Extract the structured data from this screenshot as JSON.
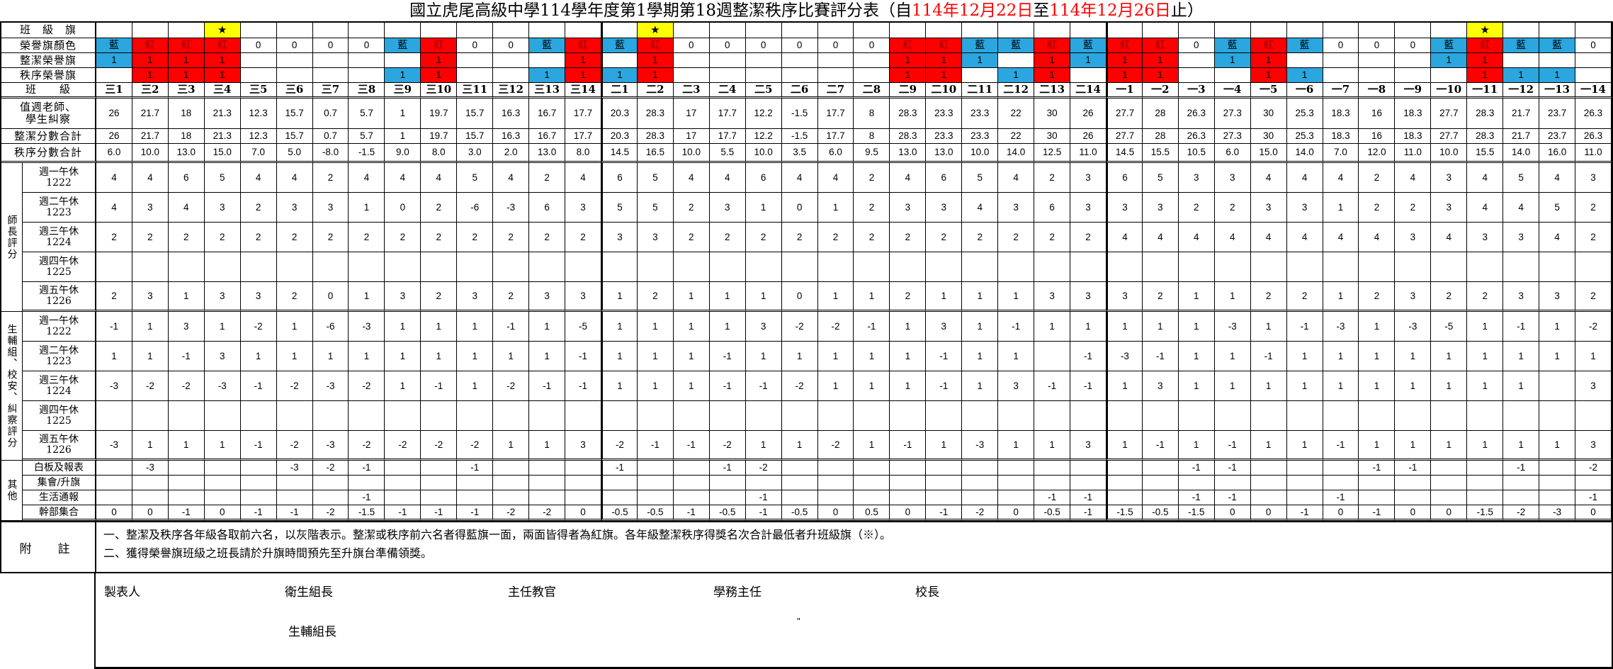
{
  "title": {
    "part1": "國立虎尾高級中學114學年度第1學期第18週整潔秩序比賽評分表（自",
    "date1": "114年12月22日",
    "part2": "至",
    "date2": "114年12月26日",
    "part3": "止）"
  },
  "colors": {
    "blue": "#2BA6DE",
    "red": "#FF0000",
    "yellow": "#FFFF00"
  },
  "legend": {
    "blue_char": "藍",
    "red_char": "紅",
    "star_char": "★"
  },
  "row_labels": {
    "class_flag": "班　級　旗",
    "flag_color": "榮譽旗顏色",
    "clean_flag": "整潔榮譽旗",
    "order_flag": "秩序榮譽旗",
    "classes": "班　　級",
    "teacher_line1": "值週老師、",
    "teacher_line2": "學生糾察",
    "clean_total": "整潔分數合計",
    "order_total": "秩序分數合計"
  },
  "classes": [
    "三1",
    "三2",
    "三3",
    "三4",
    "三5",
    "三6",
    "三7",
    "三8",
    "三9",
    "三10",
    "三11",
    "三12",
    "三13",
    "三14",
    "二1",
    "二2",
    "二3",
    "二4",
    "二5",
    "二6",
    "二7",
    "二8",
    "二9",
    "二10",
    "二11",
    "二12",
    "二13",
    "二14",
    "一1",
    "一2",
    "一3",
    "一4",
    "一5",
    "一6",
    "一7",
    "一8",
    "一9",
    "一10",
    "一11",
    "一12",
    "一13",
    "一14"
  ],
  "class_flag_stars": [
    3,
    15,
    38
  ],
  "flag_color": [
    "B",
    "R",
    "R",
    "R",
    "0",
    "0",
    "0",
    "0",
    "B",
    "R",
    "0",
    "0",
    "B",
    "R",
    "B",
    "R",
    "0",
    "0",
    "0",
    "0",
    "0",
    "0",
    "R",
    "R",
    "B",
    "B",
    "R",
    "B",
    "R",
    "R",
    "0",
    "B",
    "R",
    "B",
    "0",
    "0",
    "0",
    "B",
    "R",
    "B",
    "B",
    "0"
  ],
  "clean_flag": [
    "1b",
    "1r",
    "1r",
    "1r",
    "",
    "",
    "",
    "",
    "",
    "1r",
    "",
    "",
    "",
    "1r",
    "",
    "1r",
    "",
    "",
    "",
    "",
    "",
    "",
    "1r",
    "1r",
    "1b",
    "",
    "1r",
    "1b",
    "1r",
    "1r",
    "",
    "1b",
    "1r",
    "",
    "",
    "",
    "",
    "1b",
    "1r",
    "",
    "",
    ""
  ],
  "order_flag": [
    "",
    "1r",
    "1r",
    "1r",
    "",
    "",
    "",
    "",
    "1b",
    "1r",
    "",
    "",
    "1b",
    "1r",
    "1b",
    "1r",
    "",
    "",
    "",
    "",
    "",
    "",
    "1r",
    "1r",
    "",
    "1b",
    "1r",
    "",
    "1r",
    "1r",
    "",
    "",
    "1r",
    "1b",
    "",
    "",
    "",
    "",
    "1r",
    "1b",
    "1b",
    ""
  ],
  "teacher_scores": [
    "26",
    "21.7",
    "18",
    "21.3",
    "12.3",
    "15.7",
    "0.7",
    "5.7",
    "1",
    "19.7",
    "15.7",
    "16.3",
    "16.7",
    "17.7",
    "20.3",
    "28.3",
    "17",
    "17.7",
    "12.2",
    "-1.5",
    "17.7",
    "8",
    "28.3",
    "23.3",
    "23.3",
    "22",
    "30",
    "26",
    "27.7",
    "28",
    "26.3",
    "27.3",
    "30",
    "25.3",
    "18.3",
    "16",
    "18.3",
    "27.7",
    "28.3",
    "21.7",
    "23.7",
    "26.3"
  ],
  "clean_total": [
    "26",
    "21.7",
    "18",
    "21.3",
    "12.3",
    "15.7",
    "0.7",
    "5.7",
    "1",
    "19.7",
    "15.7",
    "16.3",
    "16.7",
    "17.7",
    "20.3",
    "28.3",
    "17",
    "17.7",
    "12.2",
    "-1.5",
    "17.7",
    "8",
    "28.3",
    "23.3",
    "23.3",
    "22",
    "30",
    "26",
    "27.7",
    "28",
    "26.3",
    "27.3",
    "30",
    "25.3",
    "18.3",
    "16",
    "18.3",
    "27.7",
    "28.3",
    "21.7",
    "23.7",
    "26.3"
  ],
  "order_total": [
    "6.0",
    "10.0",
    "13.0",
    "15.0",
    "7.0",
    "5.0",
    "-8.0",
    "-1.5",
    "9.0",
    "8.0",
    "3.0",
    "2.0",
    "13.0",
    "8.0",
    "14.5",
    "16.5",
    "10.0",
    "5.5",
    "10.0",
    "3.5",
    "6.0",
    "9.5",
    "13.0",
    "13.0",
    "10.0",
    "14.0",
    "12.5",
    "11.0",
    "14.5",
    "15.5",
    "10.5",
    "6.0",
    "15.0",
    "14.0",
    "7.0",
    "12.0",
    "11.0",
    "10.0",
    "15.5",
    "14.0",
    "16.0",
    "11.0"
  ],
  "teacher_eval": {
    "label": "師長評分",
    "rows": [
      {
        "label": "週一午休",
        "code": "1222",
        "values": [
          "4",
          "4",
          "6",
          "5",
          "4",
          "4",
          "2",
          "4",
          "4",
          "4",
          "5",
          "4",
          "2",
          "4",
          "6",
          "5",
          "4",
          "4",
          "6",
          "4",
          "4",
          "2",
          "4",
          "6",
          "5",
          "4",
          "2",
          "3",
          "6",
          "5",
          "3",
          "3",
          "4",
          "4",
          "4",
          "2",
          "4",
          "3",
          "4",
          "5",
          "4",
          "3"
        ]
      },
      {
        "label": "週二午休",
        "code": "1223",
        "values": [
          "4",
          "3",
          "4",
          "3",
          "2",
          "3",
          "3",
          "1",
          "0",
          "2",
          "-6",
          "-3",
          "6",
          "3",
          "5",
          "5",
          "2",
          "3",
          "1",
          "0",
          "1",
          "2",
          "3",
          "3",
          "4",
          "3",
          "6",
          "3",
          "3",
          "3",
          "2",
          "2",
          "3",
          "3",
          "1",
          "2",
          "2",
          "3",
          "4",
          "4",
          "5",
          "2"
        ]
      },
      {
        "label": "週三午休",
        "code": "1224",
        "values": [
          "2",
          "2",
          "2",
          "2",
          "2",
          "2",
          "2",
          "2",
          "2",
          "2",
          "2",
          "2",
          "2",
          "2",
          "3",
          "3",
          "2",
          "2",
          "2",
          "2",
          "2",
          "2",
          "2",
          "2",
          "2",
          "2",
          "2",
          "2",
          "4",
          "4",
          "4",
          "4",
          "4",
          "4",
          "4",
          "4",
          "3",
          "4",
          "3",
          "3",
          "4",
          "2"
        ]
      },
      {
        "label": "週四午休",
        "code": "1225",
        "values": [
          "",
          "",
          "",
          "",
          "",
          "",
          "",
          "",
          "",
          "",
          "",
          "",
          "",
          "",
          "",
          "",
          "",
          "",
          "",
          "",
          "",
          "",
          "",
          "",
          "",
          "",
          "",
          "",
          "",
          "",
          "",
          "",
          "",
          "",
          "",
          "",
          "",
          "",
          "",
          "",
          "",
          ""
        ]
      },
      {
        "label": "週五午休",
        "code": "1226",
        "values": [
          "2",
          "3",
          "1",
          "3",
          "3",
          "2",
          "0",
          "1",
          "3",
          "2",
          "3",
          "2",
          "3",
          "3",
          "1",
          "2",
          "1",
          "1",
          "1",
          "0",
          "1",
          "1",
          "2",
          "1",
          "1",
          "1",
          "3",
          "3",
          "3",
          "2",
          "1",
          "1",
          "2",
          "2",
          "1",
          "2",
          "3",
          "2",
          "2",
          "3",
          "3",
          "2"
        ]
      }
    ]
  },
  "discipline_eval": {
    "label": "生輔組、校安、糾察評分",
    "rows": [
      {
        "label": "週一午休",
        "code": "1222",
        "values": [
          "-1",
          "1",
          "3",
          "1",
          "-2",
          "1",
          "-6",
          "-3",
          "1",
          "1",
          "1",
          "-1",
          "1",
          "-5",
          "1",
          "1",
          "1",
          "1",
          "3",
          "-2",
          "-2",
          "-1",
          "1",
          "3",
          "1",
          "-1",
          "1",
          "1",
          "1",
          "1",
          "1",
          "-3",
          "1",
          "-1",
          "-3",
          "1",
          "-3",
          "-5",
          "1",
          "-1",
          "1",
          "-2"
        ]
      },
      {
        "label": "週二午休",
        "code": "1223",
        "values": [
          "1",
          "1",
          "-1",
          "3",
          "1",
          "1",
          "1",
          "1",
          "1",
          "1",
          "1",
          "1",
          "1",
          "-1",
          "1",
          "1",
          "1",
          "-1",
          "1",
          "1",
          "1",
          "1",
          "1",
          "-1",
          "1",
          "1",
          "",
          "-1",
          "-3",
          "-1",
          "1",
          "1",
          "-1",
          "1",
          "1",
          "1",
          "1",
          "1",
          "1",
          "1",
          "1",
          "1"
        ]
      },
      {
        "label": "週三午休",
        "code": "1224",
        "values": [
          "-3",
          "-2",
          "-2",
          "-3",
          "-1",
          "-2",
          "-3",
          "-2",
          "1",
          "-1",
          "1",
          "-2",
          "-1",
          "-1",
          "1",
          "1",
          "1",
          "-1",
          "-1",
          "-2",
          "1",
          "1",
          "1",
          "-1",
          "1",
          "3",
          "-1",
          "-1",
          "1",
          "3",
          "1",
          "1",
          "1",
          "1",
          "1",
          "1",
          "1",
          "1",
          "1",
          "1",
          "",
          "3"
        ]
      },
      {
        "label": "週四午休",
        "code": "1225",
        "values": [
          "",
          "",
          "",
          "",
          "",
          "",
          "",
          "",
          "",
          "",
          "",
          "",
          "",
          "",
          "",
          "",
          "",
          "",
          "",
          "",
          "",
          "",
          "",
          "",
          "",
          "",
          "",
          "",
          "",
          "",
          "",
          "",
          "",
          "",
          "",
          "",
          "",
          "",
          "",
          "",
          "",
          ""
        ]
      },
      {
        "label": "週五午休",
        "code": "1226",
        "values": [
          "-3",
          "1",
          "1",
          "1",
          "-1",
          "-2",
          "-3",
          "-2",
          "-2",
          "-2",
          "-2",
          "1",
          "1",
          "3",
          "-2",
          "-1",
          "-1",
          "-2",
          "1",
          "1",
          "-2",
          "1",
          "-1",
          "1",
          "-3",
          "1",
          "1",
          "3",
          "1",
          "-1",
          "1",
          "-1",
          "1",
          "1",
          "-1",
          "1",
          "1",
          "1",
          "1",
          "1",
          "1",
          "3"
        ]
      }
    ]
  },
  "other": {
    "label": "其他",
    "rows": [
      {
        "label": "白板及報表",
        "values": [
          "",
          "-3",
          "",
          "",
          "",
          "-3",
          "-2",
          "-1",
          "",
          "",
          "-1",
          "",
          "",
          "",
          "-1",
          "",
          "",
          "-1",
          "-2",
          "",
          "",
          "",
          "",
          "",
          "",
          "",
          "",
          "",
          "",
          "",
          "-1",
          "-1",
          "",
          "",
          "",
          "-1",
          "-1",
          "",
          "",
          "-1",
          "",
          "-2"
        ]
      },
      {
        "label": "集會/升旗",
        "values": [
          "",
          "",
          "",
          "",
          "",
          "",
          "",
          "",
          "",
          "",
          "",
          "",
          "",
          "",
          "",
          "",
          "",
          "",
          "",
          "",
          "",
          "",
          "",
          "",
          "",
          "",
          "",
          "",
          "",
          "",
          "",
          "",
          "",
          "",
          "",
          "",
          "",
          "",
          "",
          "",
          "",
          ""
        ]
      },
      {
        "label": "生活通報",
        "values": [
          "",
          "",
          "",
          "",
          "",
          "",
          "",
          "-1",
          "",
          "",
          "",
          "",
          "",
          "",
          "",
          "",
          "",
          "",
          "-1",
          "",
          "",
          "",
          "",
          "",
          "",
          "",
          "-1",
          "-1",
          "",
          "",
          "-1",
          "-1",
          "",
          "",
          "-1",
          "",
          "",
          "",
          "",
          "",
          "",
          "-1"
        ]
      },
      {
        "label": "幹部集合",
        "values": [
          "0",
          "0",
          "-1",
          "0",
          "-1",
          "-1",
          "-2",
          "-1.5",
          "-1",
          "-1",
          "-1",
          "-2",
          "-2",
          "0",
          "-0.5",
          "-0.5",
          "-1",
          "-0.5",
          "-1",
          "-0.5",
          "0",
          "0.5",
          "0",
          "-1",
          "-2",
          "0",
          "-0.5",
          "-1",
          "-1.5",
          "-0.5",
          "-1.5",
          "0",
          "0",
          "-1",
          "0",
          "-1",
          "0",
          "0",
          "-1.5",
          "-2",
          "-3",
          "0"
        ]
      }
    ]
  },
  "notes": {
    "label": "附　註",
    "lines": [
      "一、整潔及秩序各年級各取前六名，以灰階表示。整潔或秩序前六名者得藍旗一面，兩面皆得者為紅旗。各年級整潔秩序得獎名次合計最低者升班級旗（※）。",
      "二、獲得榮譽旗班級之班長請於升旗時間預先至升旗台準備領獎。"
    ]
  },
  "signatures": {
    "maker": "製表人",
    "hygiene": "衛生組長",
    "chief_officer": "主任教官",
    "academic_director": "學務主任",
    "principal": "校長",
    "counseling": "生輔組長",
    "mark": "\""
  }
}
